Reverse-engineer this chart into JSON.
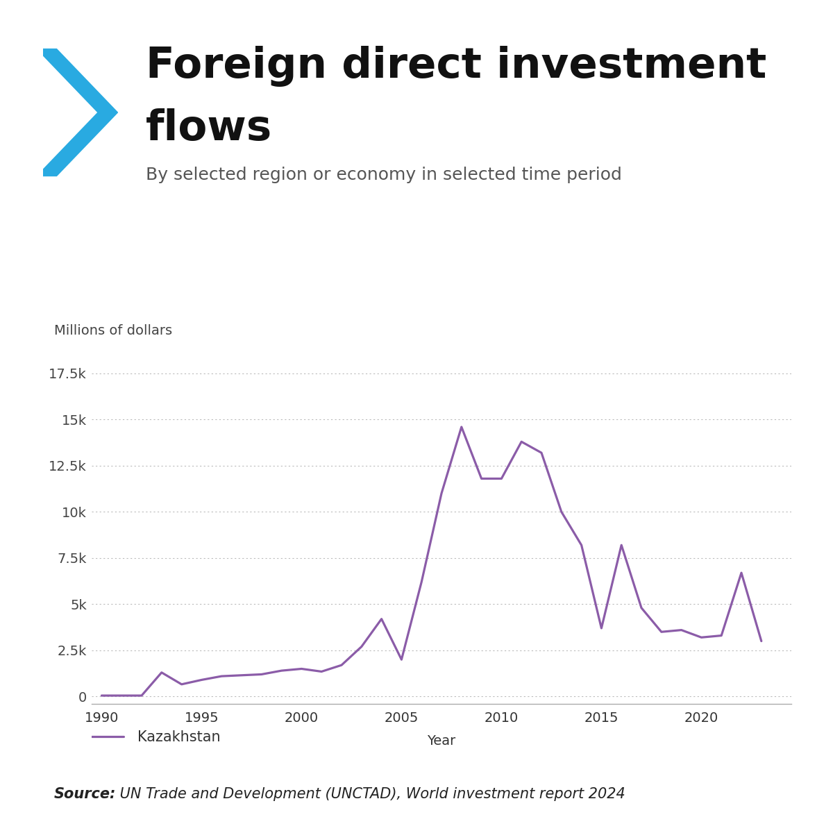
{
  "title_line1": "Foreign direct investment",
  "title_line2": "flows",
  "subtitle": "By selected region or economy in selected time period",
  "ylabel": "Millions of dollars",
  "xlabel": "Year",
  "line_color": "#8B5CA8",
  "line_label": "Kazakhstan",
  "background_color": "#FFFFFF",
  "years": [
    1990,
    1991,
    1992,
    1993,
    1994,
    1995,
    1996,
    1997,
    1998,
    1999,
    2000,
    2001,
    2002,
    2003,
    2004,
    2005,
    2006,
    2007,
    2008,
    2009,
    2010,
    2011,
    2012,
    2013,
    2014,
    2015,
    2016,
    2017,
    2018,
    2019,
    2020,
    2021,
    2022,
    2023
  ],
  "values": [
    50,
    50,
    50,
    1300,
    660,
    900,
    1100,
    1150,
    1200,
    1400,
    1500,
    1350,
    1700,
    2700,
    4200,
    2000,
    6200,
    11000,
    14600,
    11800,
    11800,
    13800,
    13200,
    10000,
    8200,
    3700,
    8200,
    4800,
    3500,
    3600,
    3200,
    3300,
    6700,
    3000
  ],
  "yticks": [
    0,
    2500,
    5000,
    7500,
    10000,
    12500,
    15000,
    17500
  ],
  "ytick_labels": [
    "0",
    "2.5k",
    "5k",
    "7.5k",
    "10k",
    "12.5k",
    "15k",
    "17.5k"
  ],
  "ylim": [
    -400,
    19000
  ],
  "xticks": [
    1990,
    1995,
    2000,
    2005,
    2010,
    2015,
    2020
  ],
  "source_italic_bold": "Source:",
  "source_rest": " UN Trade and Development (UNCTAD), World investment report 2024",
  "chevron_color": "#29AAE1",
  "title_fontsize": 44,
  "subtitle_fontsize": 18,
  "axis_label_fontsize": 14,
  "tick_fontsize": 14,
  "legend_fontsize": 15,
  "source_fontsize": 15
}
